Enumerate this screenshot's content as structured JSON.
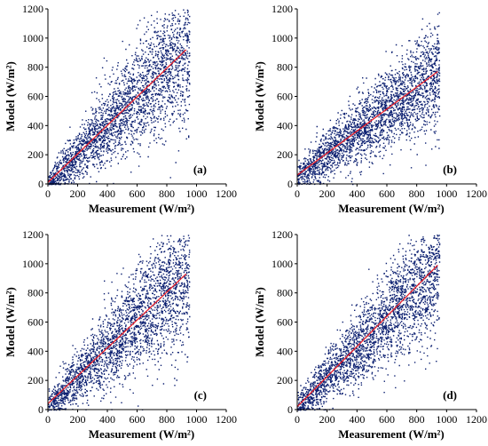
{
  "figure": {
    "colors": {
      "points": "#0b1f70",
      "fit_line": "#e8202a",
      "axis": "#000000"
    }
  },
  "chart_data": [
    {
      "type": "scatter",
      "panel_label": "(a)",
      "xlabel": "Measurement (W/m²)",
      "ylabel": "Model (W/m²)",
      "xlim": [
        0,
        1200
      ],
      "ylim": [
        0,
        1200
      ],
      "xticks": [
        "0",
        "200",
        "400",
        "600",
        "800",
        "1000",
        "1200"
      ],
      "yticks": [
        "0",
        "200",
        "400",
        "600",
        "800",
        "1000",
        "1200"
      ],
      "grid": false,
      "point_cloud": {
        "x_range": [
          0,
          950
        ],
        "fit_slope": 0.98,
        "fit_intercept": 10,
        "spread": 0.22,
        "outliers_above": true
      },
      "fit_line": {
        "x": [
          0,
          930
        ],
        "y": [
          10,
          920
        ]
      }
    },
    {
      "type": "scatter",
      "panel_label": "(b)",
      "xlabel": "Measurement (W/m²)",
      "ylabel": "Model (W/m²)",
      "xlim": [
        0,
        1200
      ],
      "ylim": [
        0,
        1200
      ],
      "xticks": [
        "0",
        "200",
        "400",
        "600",
        "800",
        "1000",
        "1200"
      ],
      "yticks": [
        "0",
        "200",
        "400",
        "600",
        "800",
        "1000",
        "1200"
      ],
      "grid": false,
      "point_cloud": {
        "x_range": [
          0,
          950
        ],
        "fit_slope": 0.75,
        "fit_intercept": 60,
        "spread": 0.2,
        "outliers_above": false
      },
      "fit_line": {
        "x": [
          0,
          940
        ],
        "y": [
          60,
          770
        ]
      }
    },
    {
      "type": "scatter",
      "panel_label": "(c)",
      "xlabel": "Measurement (W/m²)",
      "ylabel": "Model (W/m²)",
      "xlim": [
        0,
        1200
      ],
      "ylim": [
        0,
        1200
      ],
      "xticks": [
        "0",
        "200",
        "400",
        "600",
        "800",
        "1000",
        "1200"
      ],
      "yticks": [
        "0",
        "200",
        "400",
        "600",
        "800",
        "1000",
        "1200"
      ],
      "grid": false,
      "point_cloud": {
        "x_range": [
          0,
          950
        ],
        "fit_slope": 0.95,
        "fit_intercept": 40,
        "spread": 0.22,
        "outliers_above": true
      },
      "fit_line": {
        "x": [
          0,
          930
        ],
        "y": [
          40,
          930
        ]
      }
    },
    {
      "type": "scatter",
      "panel_label": "(d)",
      "xlabel": "Measurement (W/m²)",
      "ylabel": "Model (W/m²)",
      "xlim": [
        0,
        1200
      ],
      "ylim": [
        0,
        1200
      ],
      "xticks": [
        "0",
        "200",
        "400",
        "600",
        "800",
        "1000",
        "1200"
      ],
      "yticks": [
        "0",
        "200",
        "400",
        "600",
        "800",
        "1000",
        "1200"
      ],
      "grid": false,
      "point_cloud": {
        "x_range": [
          0,
          950
        ],
        "fit_slope": 1.02,
        "fit_intercept": 20,
        "spread": 0.2,
        "outliers_above": false
      },
      "fit_line": {
        "x": [
          0,
          940
        ],
        "y": [
          20,
          990
        ]
      }
    }
  ]
}
